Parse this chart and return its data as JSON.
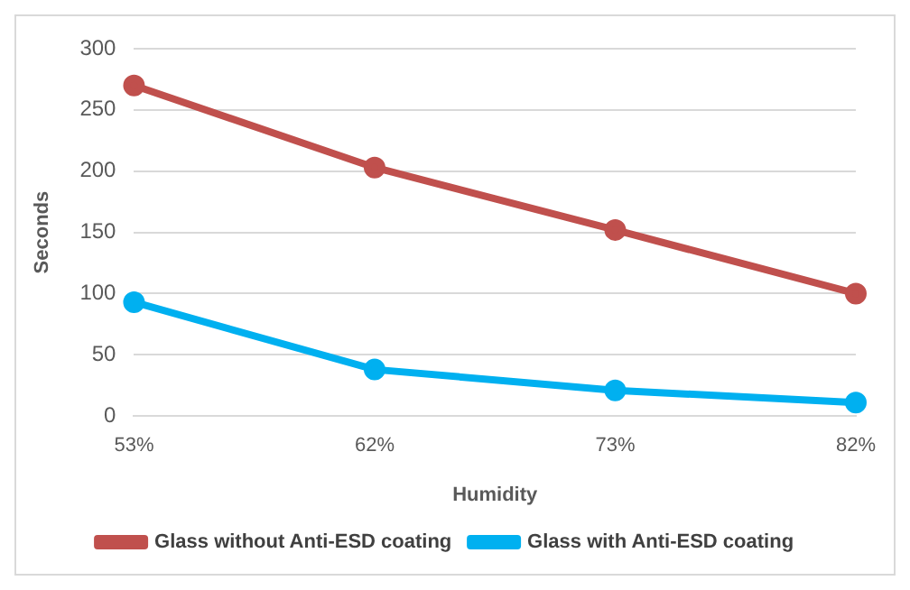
{
  "chart_data": {
    "type": "line",
    "xlabel": "Humidity",
    "ylabel": "Seconds",
    "categories": [
      "53%",
      "62%",
      "73%",
      "82%"
    ],
    "series": [
      {
        "name": "Glass without Anti-ESD coating",
        "color": "#c0504d",
        "values": [
          270,
          203,
          152,
          100
        ]
      },
      {
        "name": "Glass with Anti-ESD coating",
        "color": "#00b0f0",
        "values": [
          93,
          38,
          21,
          11
        ]
      }
    ],
    "ylim": [
      0,
      300
    ],
    "yticks": [
      0,
      50,
      100,
      150,
      200,
      250,
      300
    ],
    "grid": "y",
    "legend": "bottom",
    "marker": "circle",
    "line_style": "solid"
  }
}
